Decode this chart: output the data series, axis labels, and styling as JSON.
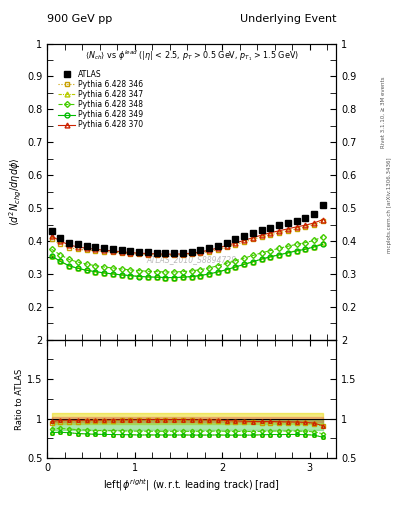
{
  "title_left": "900 GeV pp",
  "title_right": "Underlying Event",
  "subtitle": "<N_{ch}> vs \\phi^{lead} (|\\eta| < 2.5, p_T > 0.5 GeV, p_{T_1} > 1.5 GeV)",
  "xlabel": "left|\\phi^{right}| (w.r.t. leading track) [rad]",
  "ylabel_main": "\\langle d^2 N_{chg}/d\\eta d\\phi \\rangle",
  "ylabel_ratio": "Ratio to ATLAS",
  "watermark": "ATLAS_2010_S8894728",
  "ylim_main": [
    0.1,
    1.0
  ],
  "ylim_ratio": [
    0.5,
    2.0
  ],
  "xlim": [
    0,
    3.3
  ],
  "x_ticks": [
    0,
    1,
    2,
    3
  ],
  "phi_points": [
    0.05,
    0.15,
    0.25,
    0.35,
    0.45,
    0.55,
    0.65,
    0.75,
    0.85,
    0.95,
    1.05,
    1.15,
    1.25,
    1.35,
    1.45,
    1.55,
    1.65,
    1.75,
    1.85,
    1.95,
    2.05,
    2.15,
    2.25,
    2.35,
    2.45,
    2.55,
    2.65,
    2.75,
    2.85,
    2.95,
    3.05,
    3.15
  ],
  "ATLAS_y": [
    0.43,
    0.408,
    0.395,
    0.39,
    0.385,
    0.382,
    0.378,
    0.375,
    0.372,
    0.37,
    0.368,
    0.366,
    0.365,
    0.364,
    0.364,
    0.365,
    0.368,
    0.372,
    0.378,
    0.385,
    0.395,
    0.405,
    0.415,
    0.425,
    0.433,
    0.44,
    0.448,
    0.455,
    0.462,
    0.47,
    0.482,
    0.51
  ],
  "y346": [
    0.405,
    0.39,
    0.38,
    0.375,
    0.372,
    0.37,
    0.368,
    0.366,
    0.364,
    0.362,
    0.36,
    0.359,
    0.358,
    0.357,
    0.357,
    0.358,
    0.36,
    0.363,
    0.368,
    0.374,
    0.381,
    0.389,
    0.397,
    0.405,
    0.412,
    0.419,
    0.425,
    0.431,
    0.437,
    0.442,
    0.45,
    0.46
  ],
  "y347": [
    0.355,
    0.338,
    0.325,
    0.317,
    0.311,
    0.307,
    0.303,
    0.3,
    0.297,
    0.295,
    0.293,
    0.291,
    0.29,
    0.289,
    0.289,
    0.29,
    0.292,
    0.295,
    0.3,
    0.306,
    0.313,
    0.321,
    0.329,
    0.337,
    0.345,
    0.352,
    0.359,
    0.365,
    0.371,
    0.376,
    0.383,
    0.393
  ],
  "y348": [
    0.375,
    0.358,
    0.344,
    0.336,
    0.33,
    0.325,
    0.321,
    0.318,
    0.315,
    0.312,
    0.31,
    0.308,
    0.307,
    0.306,
    0.306,
    0.307,
    0.309,
    0.313,
    0.318,
    0.325,
    0.332,
    0.34,
    0.348,
    0.356,
    0.364,
    0.371,
    0.378,
    0.384,
    0.39,
    0.395,
    0.402,
    0.413
  ],
  "y349": [
    0.355,
    0.338,
    0.325,
    0.317,
    0.311,
    0.307,
    0.303,
    0.3,
    0.297,
    0.295,
    0.292,
    0.291,
    0.29,
    0.289,
    0.289,
    0.29,
    0.292,
    0.295,
    0.3,
    0.306,
    0.313,
    0.321,
    0.329,
    0.337,
    0.345,
    0.352,
    0.358,
    0.364,
    0.37,
    0.375,
    0.382,
    0.39
  ],
  "y370": [
    0.415,
    0.4,
    0.388,
    0.382,
    0.378,
    0.375,
    0.372,
    0.37,
    0.367,
    0.365,
    0.363,
    0.362,
    0.361,
    0.36,
    0.36,
    0.361,
    0.363,
    0.367,
    0.372,
    0.379,
    0.386,
    0.394,
    0.402,
    0.41,
    0.418,
    0.425,
    0.431,
    0.437,
    0.443,
    0.448,
    0.455,
    0.465
  ],
  "color_atlas": "#000000",
  "color_346": "#c8a000",
  "color_347": "#b8cc00",
  "color_348": "#44cc00",
  "color_349": "#00bb00",
  "color_370": "#cc2200",
  "band346_color": "#e8d800",
  "band349_color": "#44cc44",
  "band370_color": "#dd4444",
  "band346_upper": 1.07,
  "band346_lower": 0.93,
  "band349_upper": 0.98,
  "band349_lower": 0.86,
  "band370_upper": 1.02,
  "band370_lower": 0.96
}
